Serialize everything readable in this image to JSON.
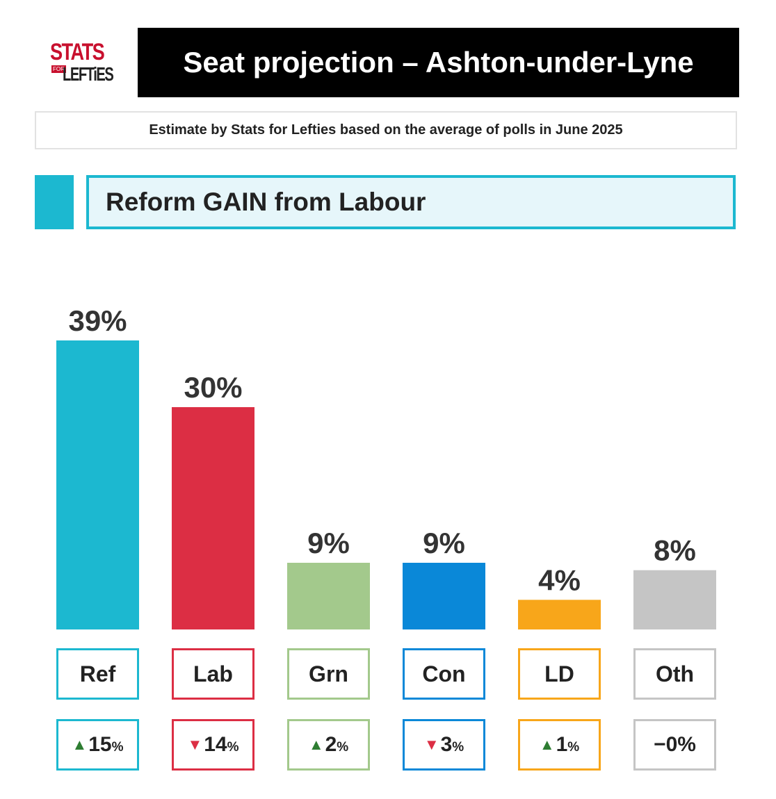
{
  "header": {
    "logo_top": "STATS",
    "logo_for": "FOR",
    "logo_bottom": "LEFTiES",
    "title": "Seat projection – Ashton-under-Lyne",
    "subtitle": "Estimate by Stats for Lefties based on the average of polls in June 2025"
  },
  "result": {
    "label": "Reform GAIN from Labour",
    "color": "#1cb8d0",
    "background": "#e6f6fa"
  },
  "chart_data": {
    "type": "bar",
    "title": "Seat projection – Ashton-under-Lyne",
    "categories": [
      "Ref",
      "Lab",
      "Grn",
      "Con",
      "LD",
      "Oth"
    ],
    "values": [
      39,
      30,
      9,
      9,
      4,
      8
    ],
    "value_labels": [
      "39%",
      "30%",
      "9%",
      "9%",
      "4%",
      "8%"
    ],
    "colors": [
      "#1cb8d0",
      "#dc2e44",
      "#a3c98c",
      "#0a88d8",
      "#f8a61a",
      "#c5c5c5"
    ],
    "ylim": [
      0,
      39
    ],
    "grid": false,
    "changes": [
      {
        "direction": "up",
        "arrow": "▲",
        "value": "15",
        "unit": "%",
        "arrow_color": "#2e7d32"
      },
      {
        "direction": "down",
        "arrow": "▼",
        "value": "14",
        "unit": "%",
        "arrow_color": "#dc2e44"
      },
      {
        "direction": "up",
        "arrow": "▲",
        "value": "2",
        "unit": "%",
        "arrow_color": "#2e7d32"
      },
      {
        "direction": "down",
        "arrow": "▼",
        "value": "3",
        "unit": "%",
        "arrow_color": "#dc2e44"
      },
      {
        "direction": "up",
        "arrow": "▲",
        "value": "1",
        "unit": "%",
        "arrow_color": "#2e7d32"
      },
      {
        "direction": "none",
        "arrow": "−",
        "value": "0",
        "unit": "%",
        "arrow_color": "#222222"
      }
    ]
  }
}
